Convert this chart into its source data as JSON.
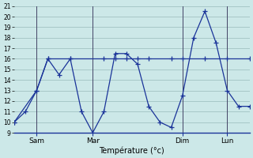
{
  "line_wavy_x": [
    0,
    1,
    2,
    3,
    4,
    5,
    6,
    7,
    8,
    9,
    10,
    11,
    12,
    13,
    14,
    15,
    16,
    17,
    18,
    19,
    20,
    21
  ],
  "line_wavy_y": [
    10,
    11,
    13,
    16,
    14.5,
    16,
    11,
    9.0,
    11.0,
    16.5,
    16.5,
    15.5,
    11.5,
    10.0,
    9.5,
    12.5,
    18.0,
    20.5,
    17.5,
    13.0,
    11.5,
    11.5
  ],
  "line_flat_x": [
    0,
    2,
    3,
    5,
    8,
    9,
    10,
    11,
    12,
    14,
    15,
    17,
    19,
    21
  ],
  "line_flat_y": [
    10,
    13,
    16,
    16,
    16,
    16,
    16,
    16,
    16,
    16,
    16,
    16,
    16,
    16
  ],
  "xtick_positions": [
    2,
    7,
    15,
    19
  ],
  "xtick_labels": [
    "Sam",
    "Mar",
    "Dim",
    "Lun"
  ],
  "ytick_min": 9,
  "ytick_max": 21,
  "xlabel": "Température (°c)",
  "bg_color": "#cce8e8",
  "line_color": "#1a3399",
  "grid_color": "#99bbbb",
  "vline_color": "#444466",
  "xlim_min": 0,
  "xlim_max": 21
}
